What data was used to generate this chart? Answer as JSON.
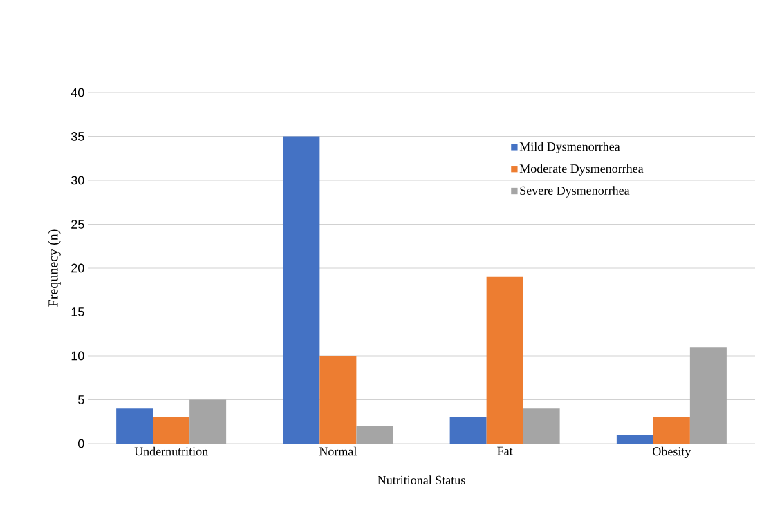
{
  "chart_data": {
    "type": "bar",
    "categories": [
      "Undernutrition",
      "Normal",
      "Fat",
      "Obesity"
    ],
    "series": [
      {
        "name": "Mild Dysmenorrhea",
        "color": "#4472c4",
        "values": [
          4,
          35,
          3,
          1
        ]
      },
      {
        "name": "Moderate Dysmenorrhea",
        "color": "#ed7d31",
        "values": [
          3,
          10,
          19,
          3
        ]
      },
      {
        "name": "Severe Dysmenorrhea",
        "color": "#a5a5a5",
        "values": [
          5,
          2,
          4,
          11
        ]
      }
    ],
    "xlabel": "Nutritional  Status",
    "ylabel": "Frequnecy (n)",
    "ylim": [
      0,
      40
    ],
    "yticks": [
      0,
      5,
      10,
      15,
      20,
      25,
      30,
      35,
      40
    ],
    "grid": "y",
    "legend": "top right"
  }
}
